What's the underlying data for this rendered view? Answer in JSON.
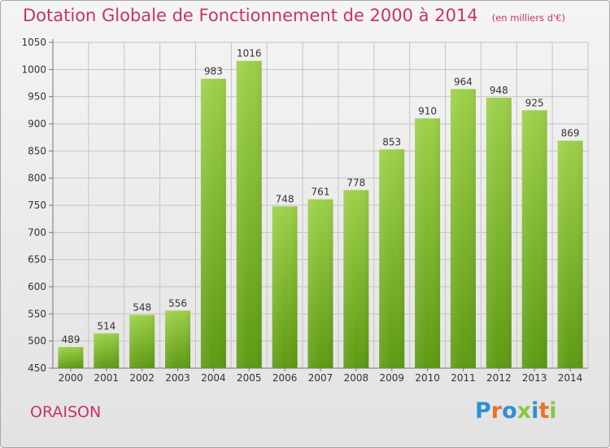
{
  "header": {
    "title": "Dotation Globale de Fonctionnement de 2000 à 2014",
    "subtitle": "(en milliers d'€)"
  },
  "footer": {
    "commune": "ORAISON",
    "logo_text": "Proxiti",
    "logo_colors": [
      "#2e8fd4",
      "#e8732b",
      "#2e8fd4",
      "#8cc63f",
      "#2e8fd4",
      "#e8732b",
      "#8cc63f"
    ]
  },
  "colors": {
    "accent": "#c8326e",
    "bar_light": "#99cc44",
    "bar_dark": "#5e9a12",
    "grid": "#c4c4c4",
    "axis_text": "#333333"
  },
  "chart_data": {
    "type": "bar",
    "title": "Dotation Globale de Fonctionnement de 2000 à 2014",
    "subtitle": "(en milliers d'€)",
    "xlabel": "",
    "ylabel": "",
    "categories": [
      "2000",
      "2001",
      "2002",
      "2003",
      "2004",
      "2005",
      "2006",
      "2007",
      "2008",
      "2009",
      "2010",
      "2011",
      "2012",
      "2013",
      "2014"
    ],
    "values": [
      489,
      514,
      548,
      556,
      983,
      1016,
      748,
      761,
      778,
      853,
      910,
      964,
      948,
      925,
      869
    ],
    "ylim": [
      450,
      1050
    ],
    "yticks": [
      450,
      500,
      550,
      600,
      650,
      700,
      750,
      800,
      850,
      900,
      950,
      1000,
      1050
    ],
    "grid": true,
    "legend": "none"
  }
}
